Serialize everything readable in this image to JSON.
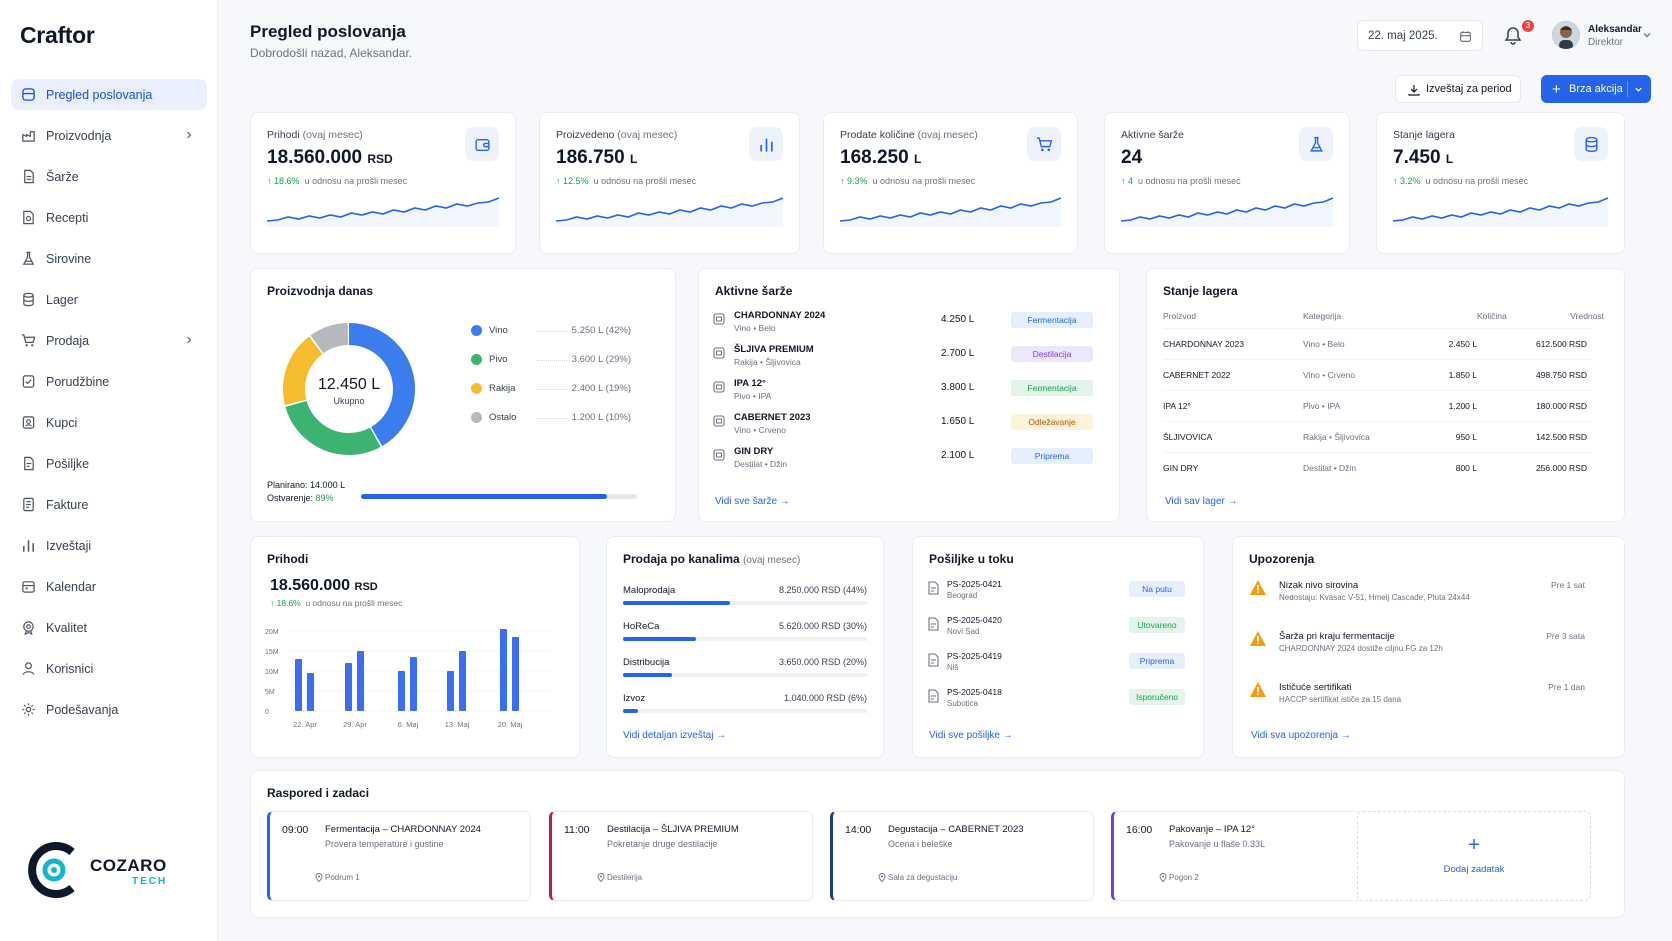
{
  "app": {
    "name": "Craftor"
  },
  "sidebar": {
    "items": [
      {
        "label": "Pregled poslovanja",
        "icon": "dashboard-icon",
        "active": true
      },
      {
        "label": "Proizvodnja",
        "icon": "factory-icon",
        "has_children": true
      },
      {
        "label": "Šarže",
        "icon": "document-icon"
      },
      {
        "label": "Recepti",
        "icon": "recipe-icon"
      },
      {
        "label": "Sirovine",
        "icon": "flask-icon"
      },
      {
        "label": "Lager",
        "icon": "database-icon"
      },
      {
        "label": "Prodaja",
        "icon": "cart-icon",
        "has_children": true
      },
      {
        "label": "Porudžbine",
        "icon": "checklist-icon"
      },
      {
        "label": "Kupci",
        "icon": "customers-icon"
      },
      {
        "label": "Pošiljke",
        "icon": "shipment-icon"
      },
      {
        "label": "Fakture",
        "icon": "invoice-icon"
      },
      {
        "label": "Izveštaji",
        "icon": "bar-chart-icon"
      },
      {
        "label": "Kalendar",
        "icon": "calendar-icon"
      },
      {
        "label": "Kvalitet",
        "icon": "quality-icon"
      },
      {
        "label": "Korisnici",
        "icon": "user-icon"
      },
      {
        "label": "Podešavanja",
        "icon": "gear-icon"
      }
    ]
  },
  "brand": {
    "name": "COZARO",
    "sub": "TECH"
  },
  "header": {
    "title": "Pregled poslovanja",
    "subtitle": "Dobrodošli nazad, Aleksandar.",
    "date": "22. maj 2025.",
    "notifications": "3",
    "user_name": "Aleksandar",
    "user_role": "Direktor",
    "report_button": "Izveštaj za period",
    "quick_button": "Brza akcija"
  },
  "kpis": [
    {
      "label": "Prihodi",
      "label_note": "(ovaj mesec)",
      "value": "18.560.000",
      "unit": "RSD",
      "change": "18.6%",
      "change_note": "u odnosu na prošli mesec",
      "icon": "wallet-icon"
    },
    {
      "label": "Proizvedeno",
      "label_note": "(ovaj mesec)",
      "value": "186.750",
      "unit": "L",
      "change": "12.5%",
      "change_note": "u odnosu na prošli mesec",
      "icon": "bar-chart-icon"
    },
    {
      "label": "Prodate količine",
      "label_note": "(ovaj mesec)",
      "value": "168.250",
      "unit": "L",
      "change": "9.3%",
      "change_note": "u odnosu na prošli mesec",
      "icon": "cart-icon"
    },
    {
      "label": "Aktivne šarže",
      "label_note": "",
      "value": "24",
      "unit": "",
      "change": "4",
      "change_note": "u odnosu na prošli mesec",
      "icon": "flask-icon"
    },
    {
      "label": "Stanje lagera",
      "label_note": "",
      "value": "7.450",
      "unit": "L",
      "change": "3.2%",
      "change_note": "u odnosu na prošli mesec",
      "icon": "database-icon"
    }
  ],
  "production": {
    "title": "Proizvodnja danas",
    "total": "12.450 L",
    "total_label": "Ukupno",
    "segments": [
      {
        "name": "Vino",
        "value": "5.250 L (42%)",
        "pct": 42,
        "color": "#3b7ded"
      },
      {
        "name": "Pivo",
        "value": "3.600 L (29%)",
        "pct": 29,
        "color": "#3cb371"
      },
      {
        "name": "Rakija",
        "value": "2.400 L (19%)",
        "pct": 19,
        "color": "#f5bd2d"
      },
      {
        "name": "Ostalo",
        "value": "1.200 L (10%)",
        "pct": 10,
        "color": "#b5b8bd"
      }
    ],
    "planned_label": "Planirano:",
    "planned": "14.000 L",
    "achieved_label": "Ostvarenje:",
    "achieved": "89%",
    "achieved_pct": 89
  },
  "batches": {
    "title": "Aktivne šarže",
    "rows": [
      {
        "name": "CHARDONNAY 2024",
        "sub": "Vino • Belo",
        "qty": "4.250 L",
        "status": "Fermentacija",
        "bg": "#e6effe",
        "fg": "#2563eb"
      },
      {
        "name": "ŠLJIVA PREMIUM",
        "sub": "Rakija • Šljivovica",
        "qty": "2.700 L",
        "status": "Destilacija",
        "bg": "#ede7fb",
        "fg": "#7c3aed"
      },
      {
        "name": "IPA 12°",
        "sub": "Pivo • IPA",
        "qty": "3.800 L",
        "status": "Fermentacija",
        "bg": "#e3f5ea",
        "fg": "#16a34a"
      },
      {
        "name": "CABERNET 2023",
        "sub": "Vino • Crveno",
        "qty": "1.650 L",
        "status": "Odležavanje",
        "bg": "#fdf3d8",
        "fg": "#b45309"
      },
      {
        "name": "GIN DRY",
        "sub": "Destilat • Džin",
        "qty": "2.100 L",
        "status": "Priprema",
        "bg": "#e6effe",
        "fg": "#2563eb"
      }
    ],
    "link": "Vidi sve šarže"
  },
  "stock": {
    "title": "Stanje lagera",
    "headers": [
      "Proizvod",
      "Kategorija",
      "Količina",
      "Vrednost"
    ],
    "rows": [
      [
        "CHARDONNAY 2023",
        "Vino • Belo",
        "2.450 L",
        "612.500 RSD"
      ],
      [
        "CABERNET 2022",
        "Vino • Crveno",
        "1.850 L",
        "498.750 RSD"
      ],
      [
        "IPA 12°",
        "Pivo • IPA",
        "1.200 L",
        "180.000 RSD"
      ],
      [
        "ŠLJIVOVICA",
        "Rakija • Šljivovica",
        "950 L",
        "142.500 RSD"
      ],
      [
        "GIN DRY",
        "Destilat • Džin",
        "800 L",
        "256.000 RSD"
      ]
    ],
    "link": "Vidi sav lager"
  },
  "revenue": {
    "title": "Prihodi",
    "value": "18.560.000",
    "unit": "RSD",
    "change": "18.6%",
    "change_note": "u odnosu na prošli mesec"
  },
  "chart_data": {
    "type": "bar",
    "categories": [
      "22. Apr",
      "",
      "29. Apr",
      "",
      "6. Maj",
      "",
      "13. Maj",
      "",
      "20. Maj",
      ""
    ],
    "series": [
      {
        "values": [
          13,
          9.5,
          12,
          15,
          10,
          13.5,
          10,
          15,
          20.5,
          18.5
        ]
      }
    ],
    "y_ticks": [
      "20M",
      "15M",
      "10M",
      "5M",
      "0"
    ],
    "ylim": [
      0,
      20
    ]
  },
  "channels": {
    "title": "Prodaja po kanalima",
    "title_note": "(ovaj mesec)",
    "rows": [
      {
        "name": "Maloprodaja",
        "value": "8.250.000 RSD (44%)",
        "pct": 44
      },
      {
        "name": "HoReCa",
        "value": "5.620.000 RSD (30%)",
        "pct": 30
      },
      {
        "name": "Distribucija",
        "value": "3.650.000 RSD (20%)",
        "pct": 20
      },
      {
        "name": "Izvoz",
        "value": "1.040.000 RSD (6%)",
        "pct": 6
      }
    ],
    "link": "Vidi detaljan izveštaj"
  },
  "shipments": {
    "title": "Pošiljke u toku",
    "rows": [
      {
        "id": "PS-2025-0421",
        "city": "Beograd",
        "status": "Na putu",
        "bg": "#e6effe",
        "fg": "#2563eb"
      },
      {
        "id": "PS-2025-0420",
        "city": "Novi Sad",
        "status": "Utovareno",
        "bg": "#e3f5ea",
        "fg": "#16a34a"
      },
      {
        "id": "PS-2025-0419",
        "city": "Niš",
        "status": "Priprema",
        "bg": "#e6effe",
        "fg": "#2563eb"
      },
      {
        "id": "PS-2025-0418",
        "city": "Subotica",
        "status": "Isporučeno",
        "bg": "#e3f5ea",
        "fg": "#16a34a"
      }
    ],
    "link": "Vidi sve pošiljke"
  },
  "warnings": {
    "title": "Upozorenja",
    "rows": [
      {
        "title": "Nizak nivo sirovina",
        "desc": "Nedostaju: Kvasac V-51, Hmelj Cascade, Pluta 24x44",
        "time": "Pre 1 sat"
      },
      {
        "title": "Šarža pri kraju fermentacije",
        "desc": "CHARDONNAY 2024 dostiže ciljnu FG za 12h",
        "time": "Pre 3 sata"
      },
      {
        "title": "Ističuće sertifikati",
        "desc": "HACCP sertifikat ističe za 15 dana",
        "time": "Pre 1 dan"
      }
    ],
    "link": "Vidi sva upozorenja"
  },
  "schedule": {
    "title": "Raspored i zadaci",
    "tasks": [
      {
        "time": "09:00",
        "name": "Fermentacija – CHARDONNAY 2024",
        "desc": "Provera temperature i gustine",
        "loc": "Podrum 1",
        "color": "#2563eb"
      },
      {
        "time": "11:00",
        "name": "Destilacija – ŠLJIVA PREMIUM",
        "desc": "Pokretanje druge destilacije",
        "loc": "Destilerija",
        "color": "#be185d"
      },
      {
        "time": "14:00",
        "name": "Degustacija – CABERNET 2023",
        "desc": "Ocena i beleške",
        "loc": "Sala za degustaciju",
        "color": "#1e3a8a"
      },
      {
        "time": "16:00",
        "name": "Pakovanje – IPA 12°",
        "desc": "Pakovanje u flaše 0.33L",
        "loc": "Pogon 2",
        "color": "#7c3aed"
      }
    ],
    "add_label": "Dodaj zadatak"
  }
}
